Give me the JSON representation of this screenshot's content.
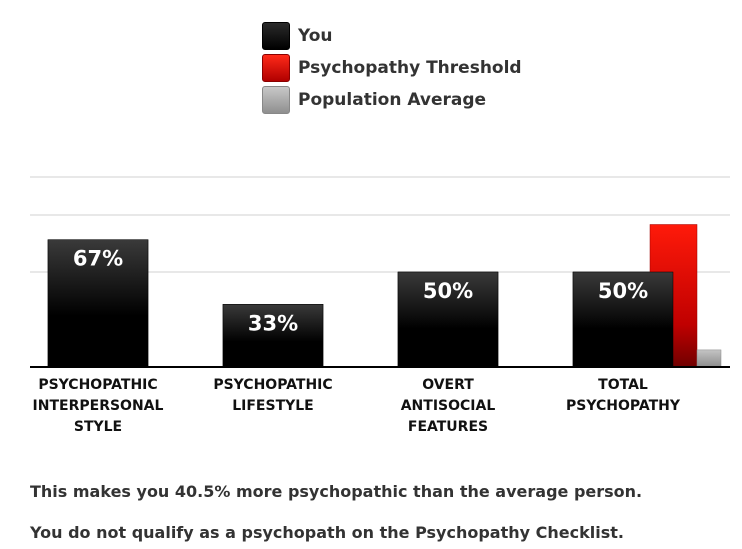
{
  "chart_data": {
    "type": "bar",
    "legend": [
      {
        "name": "You",
        "color": "#000000"
      },
      {
        "name": "Psychopathy Threshold",
        "color": "#e00000"
      },
      {
        "name": "Population Average",
        "color": "#a8a8a8"
      }
    ],
    "categories": [
      [
        "PSYCHOPATHIC",
        "INTERPERSONAL",
        "STYLE"
      ],
      [
        "PSYCHOPATHIC",
        "LIFESTYLE"
      ],
      [
        "OVERT",
        "ANTISOCIAL",
        "FEATURES"
      ],
      [
        "TOTAL",
        "PSYCHOPATHY"
      ]
    ],
    "series": [
      {
        "name": "You",
        "values": [
          67,
          33,
          50,
          50
        ],
        "labels": [
          "67%",
          "33%",
          "50%",
          "50%"
        ]
      },
      {
        "name": "Psychopathy Threshold",
        "values": [
          null,
          null,
          null,
          75
        ]
      },
      {
        "name": "Population Average",
        "values": [
          null,
          null,
          null,
          9
        ]
      }
    ],
    "ylim": [
      0,
      100
    ],
    "grid": true,
    "legend_position": "top-center"
  },
  "summary": {
    "line1": "This makes you 40.5% more psychopathic than the average person.",
    "line2": "You do not qualify as a psychopath on the Psychopathy Checklist."
  }
}
